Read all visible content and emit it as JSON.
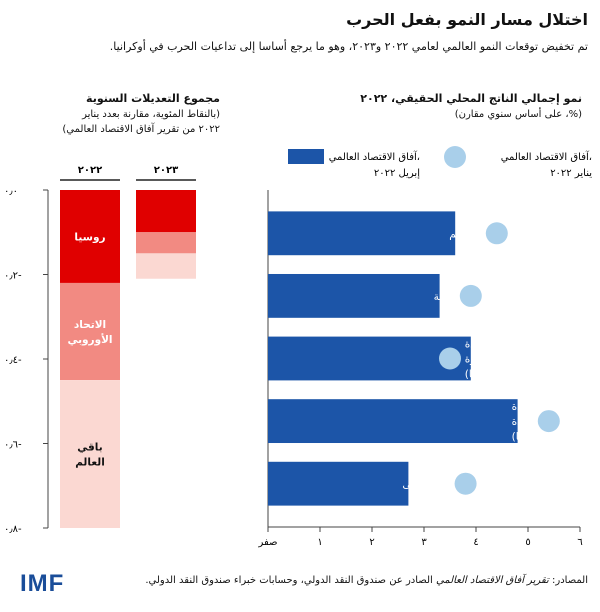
{
  "header": {
    "title": "اختلال مسار النمو بفعل الحرب",
    "subtitle": "تم تخفيض توقعات النمو العالمي لعامي ٢٠٢٢ و٢٠٢٣، وهو ما يرجع أساسا إلى تداعيات الحرب في أوكرانيا."
  },
  "right_panel": {
    "title": "نمو إجمالي الناتج المحلي الحقيقي، ٢٠٢٢",
    "subtitle": "(%، على أساس سنوي مقارن)"
  },
  "left_panel": {
    "title": "مجموع التعديلات السنوية",
    "subtitle_line1": "(بالنقاط المئوية، مقارنة بعدد يناير",
    "subtitle_line2": "٢٠٢٢ من تقرير آفاق الاقتصاد العالمي)"
  },
  "colors": {
    "bar_blue": "#1c55a8",
    "dot_blue": "#a9cfea",
    "red_dark": "#e00000",
    "red_mid": "#f28a82",
    "red_light": "#fbd8d2",
    "axis": "#444444"
  },
  "footer": {
    "source_label": "المصادر: ",
    "source_italic": "تقرير آفاق الاقتصاد العالمي",
    "source_rest": " الصادر عن صندوق النقد الدولي، وحسابات خبراء صندوق النقد الدولي."
  },
  "logo": {
    "text": "IMF"
  },
  "chart_data": [
    {
      "type": "bar",
      "orientation": "horizontal",
      "title": "نمو إجمالي الناتج المحلي الحقيقي، ٢٠٢٢",
      "categories": [
        [
          "العالم"
        ],
        [
          "الاقتصادات المتقدمة"
        ],
        [
          "اقتصادات الأسواق الصاعدة",
          "والاقتصادات النامية المصدرة",
          "للسلع الأولية (ما عدا روسيا)"
        ],
        [
          "اقتصادات الأسواق الصاعدة",
          "والاقتصادات النامية المستوردة",
          "للسلع الأولية (ما عدا أوكرانيا)"
        ],
        [
          "أوروبا الشرقية وآسيا الوسطى"
        ]
      ],
      "series": [
        {
          "name": "آفاق الاقتصاد العالمي، إبريل ٢٠٢٢",
          "legend_lines": [
            "آفاق الاقتصاد العالمي،",
            "إبريل ٢٠٢٢"
          ],
          "style": "bar",
          "values": [
            3.6,
            3.3,
            3.9,
            4.8,
            2.7
          ]
        },
        {
          "name": "آفاق الاقتصاد العالمي، يناير ٢٠٢٢",
          "legend_lines": [
            "آفاق الاقتصاد العالمي،",
            "يناير ٢٠٢٢"
          ],
          "style": "dot",
          "values": [
            4.4,
            3.9,
            3.5,
            5.4,
            3.8
          ]
        }
      ],
      "xlim": [
        0,
        6
      ],
      "x_ticks": [
        {
          "value": 0,
          "label": "صفر"
        },
        {
          "value": 1,
          "label": "١"
        },
        {
          "value": 2,
          "label": "٢"
        },
        {
          "value": 3,
          "label": "٣"
        },
        {
          "value": 4,
          "label": "٤"
        },
        {
          "value": 5,
          "label": "٥"
        },
        {
          "value": 6,
          "label": "٦"
        }
      ]
    },
    {
      "type": "bar",
      "orientation": "vertical-stacked",
      "title": "مجموع التعديلات السنوية",
      "categories": [
        "٢٠٢٢",
        "٢٠٢٣"
      ],
      "series": [
        {
          "name": "روسيا",
          "label_lines": [
            "روسيا"
          ],
          "color_key": "red_dark",
          "values": [
            -0.22,
            -0.1
          ]
        },
        {
          "name": "الاتحاد الأوروبي",
          "label_lines": [
            "الاتحاد",
            "الأوروبي"
          ],
          "color_key": "red_mid",
          "values": [
            -0.23,
            -0.05
          ]
        },
        {
          "name": "باقي العالم",
          "label_lines": [
            "باقي",
            "العالم"
          ],
          "color_key": "red_light",
          "values": [
            -0.35,
            -0.06
          ]
        }
      ],
      "ylim": [
        -0.8,
        0
      ],
      "y_ticks": [
        {
          "value": 0,
          "label": "٠٫٠"
        },
        {
          "value": -0.2,
          "label": "٠٫٢-"
        },
        {
          "value": -0.4,
          "label": "٠٫٤-"
        },
        {
          "value": -0.6,
          "label": "٠٫٦-"
        },
        {
          "value": -0.8,
          "label": "٠٫٨-"
        }
      ]
    }
  ]
}
